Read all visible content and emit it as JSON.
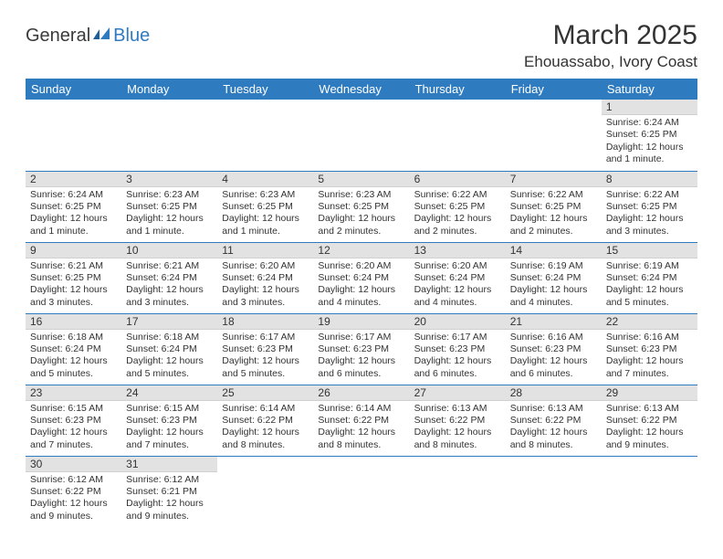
{
  "logo": {
    "text1": "General",
    "text2": "Blue"
  },
  "title": "March 2025",
  "location": "Ehouassabo, Ivory Coast",
  "columns": [
    "Sunday",
    "Monday",
    "Tuesday",
    "Wednesday",
    "Thursday",
    "Friday",
    "Saturday"
  ],
  "colors": {
    "header_bg": "#2f7bbf",
    "header_fg": "#ffffff",
    "daynum_bg": "#e2e2e2",
    "row_border": "#2f7bbf",
    "text": "#333333",
    "page_bg": "#ffffff"
  },
  "fonts": {
    "title_size_pt": 22,
    "location_size_pt": 13,
    "dayhead_size_pt": 10,
    "daynum_size_pt": 9,
    "body_size_pt": 8
  },
  "weeks": [
    [
      {
        "n": "",
        "sr": "",
        "ss": "",
        "dl": ""
      },
      {
        "n": "",
        "sr": "",
        "ss": "",
        "dl": ""
      },
      {
        "n": "",
        "sr": "",
        "ss": "",
        "dl": ""
      },
      {
        "n": "",
        "sr": "",
        "ss": "",
        "dl": ""
      },
      {
        "n": "",
        "sr": "",
        "ss": "",
        "dl": ""
      },
      {
        "n": "",
        "sr": "",
        "ss": "",
        "dl": ""
      },
      {
        "n": "1",
        "sr": "Sunrise: 6:24 AM",
        "ss": "Sunset: 6:25 PM",
        "dl": "Daylight: 12 hours and 1 minute."
      }
    ],
    [
      {
        "n": "2",
        "sr": "Sunrise: 6:24 AM",
        "ss": "Sunset: 6:25 PM",
        "dl": "Daylight: 12 hours and 1 minute."
      },
      {
        "n": "3",
        "sr": "Sunrise: 6:23 AM",
        "ss": "Sunset: 6:25 PM",
        "dl": "Daylight: 12 hours and 1 minute."
      },
      {
        "n": "4",
        "sr": "Sunrise: 6:23 AM",
        "ss": "Sunset: 6:25 PM",
        "dl": "Daylight: 12 hours and 1 minute."
      },
      {
        "n": "5",
        "sr": "Sunrise: 6:23 AM",
        "ss": "Sunset: 6:25 PM",
        "dl": "Daylight: 12 hours and 2 minutes."
      },
      {
        "n": "6",
        "sr": "Sunrise: 6:22 AM",
        "ss": "Sunset: 6:25 PM",
        "dl": "Daylight: 12 hours and 2 minutes."
      },
      {
        "n": "7",
        "sr": "Sunrise: 6:22 AM",
        "ss": "Sunset: 6:25 PM",
        "dl": "Daylight: 12 hours and 2 minutes."
      },
      {
        "n": "8",
        "sr": "Sunrise: 6:22 AM",
        "ss": "Sunset: 6:25 PM",
        "dl": "Daylight: 12 hours and 3 minutes."
      }
    ],
    [
      {
        "n": "9",
        "sr": "Sunrise: 6:21 AM",
        "ss": "Sunset: 6:25 PM",
        "dl": "Daylight: 12 hours and 3 minutes."
      },
      {
        "n": "10",
        "sr": "Sunrise: 6:21 AM",
        "ss": "Sunset: 6:24 PM",
        "dl": "Daylight: 12 hours and 3 minutes."
      },
      {
        "n": "11",
        "sr": "Sunrise: 6:20 AM",
        "ss": "Sunset: 6:24 PM",
        "dl": "Daylight: 12 hours and 3 minutes."
      },
      {
        "n": "12",
        "sr": "Sunrise: 6:20 AM",
        "ss": "Sunset: 6:24 PM",
        "dl": "Daylight: 12 hours and 4 minutes."
      },
      {
        "n": "13",
        "sr": "Sunrise: 6:20 AM",
        "ss": "Sunset: 6:24 PM",
        "dl": "Daylight: 12 hours and 4 minutes."
      },
      {
        "n": "14",
        "sr": "Sunrise: 6:19 AM",
        "ss": "Sunset: 6:24 PM",
        "dl": "Daylight: 12 hours and 4 minutes."
      },
      {
        "n": "15",
        "sr": "Sunrise: 6:19 AM",
        "ss": "Sunset: 6:24 PM",
        "dl": "Daylight: 12 hours and 5 minutes."
      }
    ],
    [
      {
        "n": "16",
        "sr": "Sunrise: 6:18 AM",
        "ss": "Sunset: 6:24 PM",
        "dl": "Daylight: 12 hours and 5 minutes."
      },
      {
        "n": "17",
        "sr": "Sunrise: 6:18 AM",
        "ss": "Sunset: 6:24 PM",
        "dl": "Daylight: 12 hours and 5 minutes."
      },
      {
        "n": "18",
        "sr": "Sunrise: 6:17 AM",
        "ss": "Sunset: 6:23 PM",
        "dl": "Daylight: 12 hours and 5 minutes."
      },
      {
        "n": "19",
        "sr": "Sunrise: 6:17 AM",
        "ss": "Sunset: 6:23 PM",
        "dl": "Daylight: 12 hours and 6 minutes."
      },
      {
        "n": "20",
        "sr": "Sunrise: 6:17 AM",
        "ss": "Sunset: 6:23 PM",
        "dl": "Daylight: 12 hours and 6 minutes."
      },
      {
        "n": "21",
        "sr": "Sunrise: 6:16 AM",
        "ss": "Sunset: 6:23 PM",
        "dl": "Daylight: 12 hours and 6 minutes."
      },
      {
        "n": "22",
        "sr": "Sunrise: 6:16 AM",
        "ss": "Sunset: 6:23 PM",
        "dl": "Daylight: 12 hours and 7 minutes."
      }
    ],
    [
      {
        "n": "23",
        "sr": "Sunrise: 6:15 AM",
        "ss": "Sunset: 6:23 PM",
        "dl": "Daylight: 12 hours and 7 minutes."
      },
      {
        "n": "24",
        "sr": "Sunrise: 6:15 AM",
        "ss": "Sunset: 6:23 PM",
        "dl": "Daylight: 12 hours and 7 minutes."
      },
      {
        "n": "25",
        "sr": "Sunrise: 6:14 AM",
        "ss": "Sunset: 6:22 PM",
        "dl": "Daylight: 12 hours and 8 minutes."
      },
      {
        "n": "26",
        "sr": "Sunrise: 6:14 AM",
        "ss": "Sunset: 6:22 PM",
        "dl": "Daylight: 12 hours and 8 minutes."
      },
      {
        "n": "27",
        "sr": "Sunrise: 6:13 AM",
        "ss": "Sunset: 6:22 PM",
        "dl": "Daylight: 12 hours and 8 minutes."
      },
      {
        "n": "28",
        "sr": "Sunrise: 6:13 AM",
        "ss": "Sunset: 6:22 PM",
        "dl": "Daylight: 12 hours and 8 minutes."
      },
      {
        "n": "29",
        "sr": "Sunrise: 6:13 AM",
        "ss": "Sunset: 6:22 PM",
        "dl": "Daylight: 12 hours and 9 minutes."
      }
    ],
    [
      {
        "n": "30",
        "sr": "Sunrise: 6:12 AM",
        "ss": "Sunset: 6:22 PM",
        "dl": "Daylight: 12 hours and 9 minutes."
      },
      {
        "n": "31",
        "sr": "Sunrise: 6:12 AM",
        "ss": "Sunset: 6:21 PM",
        "dl": "Daylight: 12 hours and 9 minutes."
      },
      {
        "n": "",
        "sr": "",
        "ss": "",
        "dl": ""
      },
      {
        "n": "",
        "sr": "",
        "ss": "",
        "dl": ""
      },
      {
        "n": "",
        "sr": "",
        "ss": "",
        "dl": ""
      },
      {
        "n": "",
        "sr": "",
        "ss": "",
        "dl": ""
      },
      {
        "n": "",
        "sr": "",
        "ss": "",
        "dl": ""
      }
    ]
  ]
}
